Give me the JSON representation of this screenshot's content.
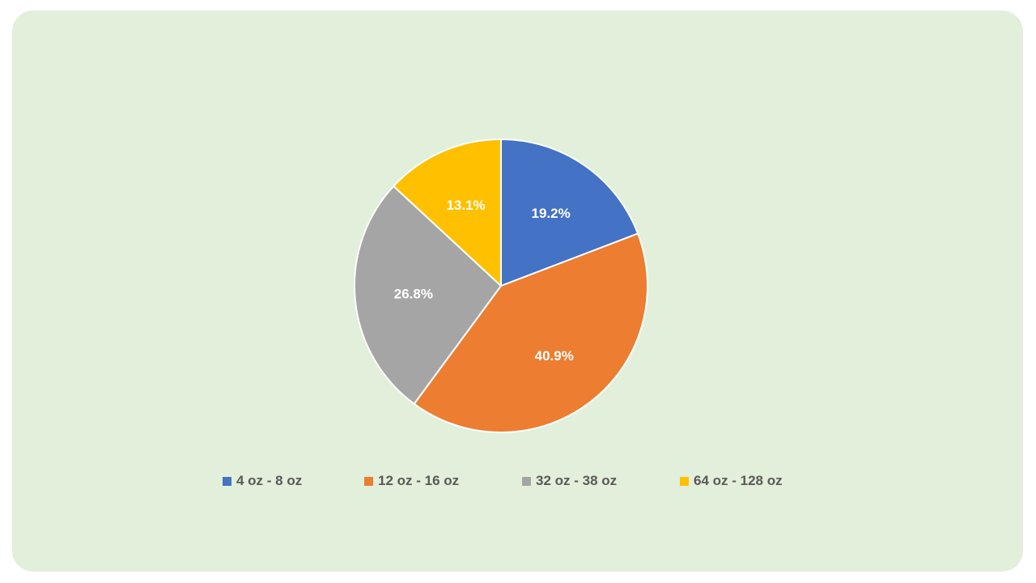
{
  "chart_data": {
    "type": "pie",
    "categories": [
      "4 oz - 8 oz",
      "12 oz - 16 oz",
      "32 oz - 38 oz",
      "64 oz - 128 oz"
    ],
    "values": [
      19.2,
      40.9,
      26.8,
      13.1
    ],
    "data_labels": [
      "19.2%",
      "40.9%",
      "26.8%",
      "13.1%"
    ],
    "colors": [
      "#4472c4",
      "#ed7d31",
      "#a5a5a5",
      "#ffc000"
    ],
    "start_angle": "12 o'clock",
    "direction": "clockwise",
    "legend_position": "bottom"
  }
}
